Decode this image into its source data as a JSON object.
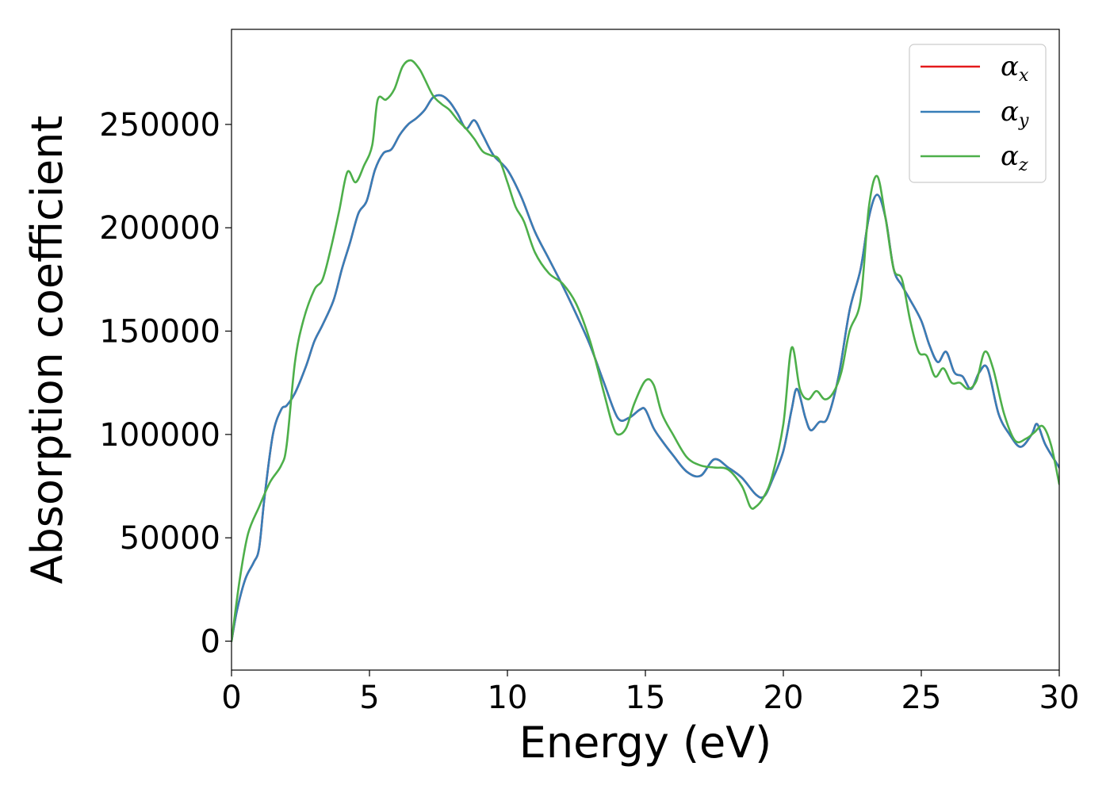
{
  "chart_data": {
    "type": "line",
    "title": "",
    "xlabel": "Energy (eV)",
    "ylabel": "Absorption coefficient",
    "xlim": [
      0,
      30
    ],
    "ylim": [
      -14000,
      296000
    ],
    "xticks": [
      0,
      5,
      10,
      15,
      20,
      25,
      30
    ],
    "yticks": [
      0,
      50000,
      100000,
      150000,
      200000,
      250000
    ],
    "grid": false,
    "legend_position": "top-right",
    "legend": [
      {
        "symbol": "α",
        "subscript": "x",
        "color": "#e41a1c"
      },
      {
        "symbol": "α",
        "subscript": "y",
        "color": "#377eb8"
      },
      {
        "symbol": "α",
        "subscript": "z",
        "color": "#4daf4a"
      }
    ],
    "series": [
      {
        "color": "#e41a1c",
        "x": [
          0,
          0.2,
          0.5,
          0.8,
          1.0,
          1.2,
          1.5,
          1.8,
          2.0,
          2.3,
          2.7,
          3.0,
          3.3,
          3.7,
          4.0,
          4.3,
          4.6,
          4.9,
          5.2,
          5.5,
          5.8,
          6.1,
          6.4,
          6.7,
          7.0,
          7.3,
          7.6,
          7.9,
          8.2,
          8.5,
          8.8,
          9.1,
          9.5,
          10.0,
          10.5,
          11.0,
          11.5,
          12.0,
          12.5,
          13.0,
          13.5,
          14.0,
          14.4,
          14.8,
          15.0,
          15.3,
          15.6,
          16.0,
          16.5,
          17.0,
          17.5,
          18.0,
          18.5,
          19.0,
          19.3,
          19.6,
          20.0,
          20.3,
          20.5,
          20.8,
          21.0,
          21.3,
          21.6,
          22.0,
          22.4,
          22.8,
          23.1,
          23.4,
          23.7,
          24.0,
          24.3,
          24.6,
          25.0,
          25.3,
          25.6,
          25.9,
          26.2,
          26.5,
          26.8,
          27.1,
          27.4,
          27.8,
          28.2,
          28.6,
          29.0,
          29.2,
          29.5,
          30.0
        ],
        "y": [
          0,
          15000,
          30000,
          38000,
          45000,
          70000,
          100000,
          112000,
          114000,
          120000,
          133000,
          145000,
          153000,
          165000,
          180000,
          193000,
          207000,
          213000,
          228000,
          236000,
          238000,
          245000,
          250000,
          253000,
          257000,
          263000,
          264000,
          261000,
          255000,
          248000,
          252000,
          245000,
          235000,
          228000,
          215000,
          198000,
          185000,
          172000,
          158000,
          143000,
          125000,
          108000,
          108000,
          112000,
          112000,
          103000,
          97000,
          90000,
          82000,
          80000,
          88000,
          84000,
          79000,
          71000,
          70000,
          78000,
          92000,
          112000,
          122000,
          108000,
          102000,
          106000,
          108000,
          128000,
          160000,
          180000,
          205000,
          216000,
          205000,
          180000,
          172000,
          165000,
          155000,
          143000,
          135000,
          140000,
          130000,
          128000,
          122000,
          130000,
          132000,
          110000,
          100000,
          94000,
          100000,
          105000,
          95000,
          84000
        ]
      },
      {
        "color": "#377eb8",
        "x": [
          0,
          0.2,
          0.5,
          0.8,
          1.0,
          1.2,
          1.5,
          1.8,
          2.0,
          2.3,
          2.7,
          3.0,
          3.3,
          3.7,
          4.0,
          4.3,
          4.6,
          4.9,
          5.2,
          5.5,
          5.8,
          6.1,
          6.4,
          6.7,
          7.0,
          7.3,
          7.6,
          7.9,
          8.2,
          8.5,
          8.8,
          9.1,
          9.5,
          10.0,
          10.5,
          11.0,
          11.5,
          12.0,
          12.5,
          13.0,
          13.5,
          14.0,
          14.4,
          14.8,
          15.0,
          15.3,
          15.6,
          16.0,
          16.5,
          17.0,
          17.5,
          18.0,
          18.5,
          19.0,
          19.3,
          19.6,
          20.0,
          20.3,
          20.5,
          20.8,
          21.0,
          21.3,
          21.6,
          22.0,
          22.4,
          22.8,
          23.1,
          23.4,
          23.7,
          24.0,
          24.3,
          24.6,
          25.0,
          25.3,
          25.6,
          25.9,
          26.2,
          26.5,
          26.8,
          27.1,
          27.4,
          27.8,
          28.2,
          28.6,
          29.0,
          29.2,
          29.5,
          30.0
        ],
        "y": [
          0,
          15000,
          30000,
          38000,
          45000,
          70000,
          100000,
          112000,
          114000,
          120000,
          133000,
          145000,
          153000,
          165000,
          180000,
          193000,
          207000,
          213000,
          228000,
          236000,
          238000,
          245000,
          250000,
          253000,
          257000,
          263000,
          264000,
          261000,
          255000,
          248000,
          252000,
          245000,
          235000,
          228000,
          215000,
          198000,
          185000,
          172000,
          158000,
          143000,
          125000,
          108000,
          108000,
          112000,
          112000,
          103000,
          97000,
          90000,
          82000,
          80000,
          88000,
          84000,
          79000,
          71000,
          70000,
          78000,
          92000,
          112000,
          122000,
          108000,
          102000,
          106000,
          108000,
          128000,
          160000,
          180000,
          205000,
          216000,
          205000,
          180000,
          172000,
          165000,
          155000,
          143000,
          135000,
          140000,
          130000,
          128000,
          122000,
          130000,
          132000,
          110000,
          100000,
          94000,
          100000,
          105000,
          95000,
          84000
        ]
      },
      {
        "color": "#4daf4a",
        "x": [
          0,
          0.3,
          0.6,
          1.0,
          1.4,
          1.8,
          2.0,
          2.3,
          2.6,
          3.0,
          3.3,
          3.6,
          3.9,
          4.2,
          4.5,
          4.8,
          5.1,
          5.3,
          5.6,
          5.9,
          6.2,
          6.5,
          6.8,
          7.0,
          7.3,
          7.6,
          7.9,
          8.2,
          8.5,
          8.8,
          9.1,
          9.4,
          9.7,
          10.0,
          10.3,
          10.6,
          11.0,
          11.5,
          12.0,
          12.5,
          13.0,
          13.5,
          13.8,
          14.0,
          14.3,
          14.6,
          15.0,
          15.3,
          15.6,
          16.0,
          16.5,
          17.0,
          17.5,
          18.0,
          18.5,
          18.8,
          19.0,
          19.3,
          19.6,
          20.0,
          20.3,
          20.6,
          20.9,
          21.2,
          21.5,
          21.8,
          22.1,
          22.4,
          22.8,
          23.1,
          23.4,
          23.7,
          24.0,
          24.3,
          24.6,
          24.9,
          25.2,
          25.5,
          25.8,
          26.1,
          26.4,
          26.7,
          27.0,
          27.3,
          27.6,
          28.0,
          28.4,
          28.8,
          29.1,
          29.4,
          29.7,
          30.0
        ],
        "y": [
          0,
          30000,
          52000,
          65000,
          77000,
          85000,
          95000,
          135000,
          155000,
          170000,
          175000,
          190000,
          208000,
          227000,
          222000,
          230000,
          240000,
          262000,
          262000,
          267000,
          278000,
          281000,
          277000,
          272000,
          264000,
          260000,
          257000,
          252000,
          248000,
          243000,
          237000,
          235000,
          233000,
          222000,
          210000,
          203000,
          188000,
          178000,
          173000,
          163000,
          145000,
          120000,
          105000,
          100000,
          103000,
          115000,
          126000,
          124000,
          110000,
          100000,
          89000,
          85000,
          84000,
          83000,
          75000,
          65000,
          65000,
          70000,
          80000,
          105000,
          142000,
          122000,
          117000,
          121000,
          117000,
          120000,
          130000,
          150000,
          165000,
          210000,
          225000,
          205000,
          180000,
          175000,
          155000,
          140000,
          138000,
          128000,
          132000,
          125000,
          125000,
          122000,
          126000,
          140000,
          132000,
          110000,
          97000,
          98000,
          101000,
          104000,
          95000,
          76000
        ]
      }
    ]
  }
}
